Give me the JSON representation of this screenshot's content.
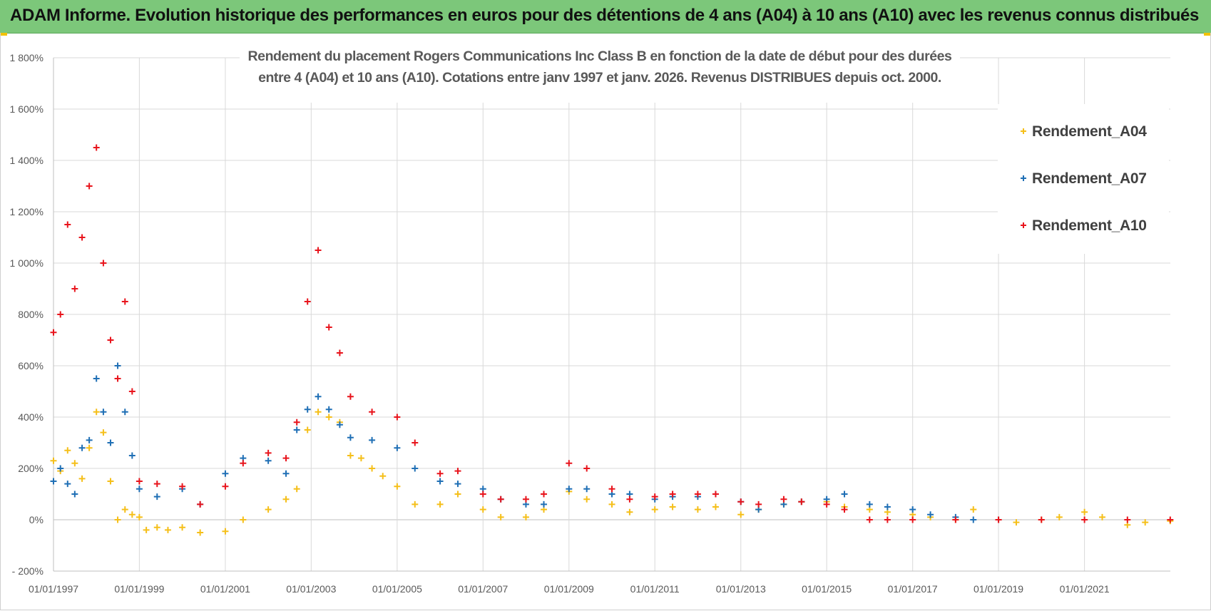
{
  "banner": {
    "title": "ADAM Informe. Evolution historique des performances en euros pour des détentions de 4 ans (A04) à 10 ans (A10) avec les revenus connus distribués"
  },
  "colors": {
    "banner_bg": "#7cc77a",
    "A04": "#f5bf19",
    "A07": "#1f6fb5",
    "A10": "#e8141c",
    "grid": "#d9d9d9"
  },
  "chart_data": {
    "type": "scatter",
    "marker": "plus",
    "title_lines": [
      "Rendement du placement Rogers Communications Inc Class B en fonction de la date de début pour des durées",
      "entre 4 (A04) et 10 ans (A10).  Cotations entre janv 1997 et janv. 2026. Revenus DISTRIBUES depuis oct. 2000."
    ],
    "x_axis": {
      "type": "date",
      "range": [
        "1997-01-01",
        "2023-01-01"
      ],
      "tick_labels": [
        "01/01/1997",
        "01/01/1999",
        "01/01/2001",
        "01/01/2003",
        "01/01/2005",
        "01/01/2007",
        "01/01/2009",
        "01/01/2011",
        "01/01/2013",
        "01/01/2015",
        "01/01/2017",
        "01/01/2019",
        "01/01/2021"
      ]
    },
    "y_axis": {
      "min": -200,
      "max": 1800,
      "step": 200,
      "unit": "%",
      "tick_labels": [
        "- 200%",
        "0%",
        "200%",
        "400%",
        "600%",
        "800%",
        "1 000%",
        "1 200%",
        "1 400%",
        "1 600%",
        "1 800%"
      ]
    },
    "grid": "on",
    "legend_position": "top-right",
    "series": [
      {
        "name": "Rendement_A04",
        "color": "#f5bf19",
        "x": [
          "1997-01-01",
          "1997-03-01",
          "1997-05-01",
          "1997-07-01",
          "1997-09-01",
          "1997-11-01",
          "1998-01-01",
          "1998-03-01",
          "1998-05-01",
          "1998-07-01",
          "1998-09-01",
          "1998-11-01",
          "1999-01-01",
          "1999-03-01",
          "1999-06-01",
          "1999-09-01",
          "2000-01-01",
          "2000-06-01",
          "2001-01-01",
          "2001-06-01",
          "2002-01-01",
          "2002-06-01",
          "2002-09-01",
          "2002-12-01",
          "2003-03-01",
          "2003-06-01",
          "2003-09-01",
          "2003-12-01",
          "2004-03-01",
          "2004-06-01",
          "2004-09-01",
          "2005-01-01",
          "2005-06-01",
          "2006-01-01",
          "2006-06-01",
          "2007-01-01",
          "2007-06-01",
          "2008-01-01",
          "2008-06-01",
          "2009-01-01",
          "2009-06-01",
          "2010-01-01",
          "2010-06-01",
          "2011-01-01",
          "2011-06-01",
          "2012-01-01",
          "2012-06-01",
          "2013-01-01",
          "2013-06-01",
          "2014-01-01",
          "2014-06-01",
          "2015-01-01",
          "2015-06-01",
          "2016-01-01",
          "2016-06-01",
          "2017-01-01",
          "2017-06-01",
          "2018-01-01",
          "2018-06-01",
          "2019-01-01",
          "2019-06-01",
          "2020-01-01",
          "2020-06-01",
          "2021-01-01",
          "2021-06-01",
          "2022-01-01",
          "2022-06-01",
          "2022-12-31"
        ],
        "y": [
          230,
          190,
          270,
          220,
          160,
          280,
          420,
          340,
          150,
          0,
          40,
          20,
          10,
          -40,
          -30,
          -40,
          -30,
          -50,
          -45,
          0,
          40,
          80,
          120,
          350,
          420,
          400,
          380,
          250,
          240,
          200,
          170,
          130,
          60,
          60,
          100,
          40,
          10,
          10,
          40,
          110,
          80,
          60,
          30,
          40,
          50,
          40,
          50,
          20,
          40,
          60,
          70,
          70,
          50,
          40,
          30,
          20,
          10,
          0,
          40,
          0,
          -10,
          0,
          10,
          30,
          10,
          -20,
          -10,
          -5
        ]
      },
      {
        "name": "Rendement_A07",
        "color": "#1f6fb5",
        "x": [
          "1997-01-01",
          "1997-03-01",
          "1997-05-01",
          "1997-07-01",
          "1997-09-01",
          "1997-11-01",
          "1998-01-01",
          "1998-03-01",
          "1998-05-01",
          "1998-07-01",
          "1998-09-01",
          "1998-11-01",
          "1999-01-01",
          "1999-06-01",
          "2000-01-01",
          "2000-06-01",
          "2001-01-01",
          "2001-06-01",
          "2002-01-01",
          "2002-06-01",
          "2002-09-01",
          "2002-12-01",
          "2003-03-01",
          "2003-06-01",
          "2003-09-01",
          "2003-12-01",
          "2004-06-01",
          "2005-01-01",
          "2005-06-01",
          "2006-01-01",
          "2006-06-01",
          "2007-01-01",
          "2007-06-01",
          "2008-01-01",
          "2008-06-01",
          "2009-01-01",
          "2009-06-01",
          "2010-01-01",
          "2010-06-01",
          "2011-01-01",
          "2011-06-01",
          "2012-01-01",
          "2012-06-01",
          "2013-01-01",
          "2013-06-01",
          "2014-01-01",
          "2014-06-01",
          "2015-01-01",
          "2015-06-01",
          "2016-01-01",
          "2016-06-01",
          "2017-01-01",
          "2017-06-01",
          "2018-01-01",
          "2018-06-01",
          "2019-01-01"
        ],
        "y": [
          150,
          200,
          140,
          100,
          280,
          310,
          550,
          420,
          300,
          600,
          420,
          250,
          120,
          90,
          120,
          60,
          180,
          240,
          230,
          180,
          350,
          430,
          480,
          430,
          370,
          320,
          310,
          280,
          200,
          150,
          140,
          120,
          80,
          60,
          60,
          120,
          120,
          100,
          100,
          80,
          90,
          90,
          100,
          70,
          40,
          60,
          70,
          80,
          100,
          60,
          50,
          40,
          20,
          10,
          0,
          0
        ]
      },
      {
        "name": "Rendement_A10",
        "color": "#e8141c",
        "x": [
          "1997-01-01",
          "1997-03-01",
          "1997-05-01",
          "1997-07-01",
          "1997-09-01",
          "1997-11-01",
          "1998-01-01",
          "1998-03-01",
          "1998-05-01",
          "1998-07-01",
          "1998-09-01",
          "1998-11-01",
          "1999-01-01",
          "1999-06-01",
          "2000-01-01",
          "2000-06-01",
          "2001-01-01",
          "2001-06-01",
          "2002-01-01",
          "2002-06-01",
          "2002-09-01",
          "2002-12-01",
          "2003-03-01",
          "2003-06-01",
          "2003-09-01",
          "2003-12-01",
          "2004-06-01",
          "2005-01-01",
          "2005-06-01",
          "2006-01-01",
          "2006-06-01",
          "2007-01-01",
          "2007-06-01",
          "2008-01-01",
          "2008-06-01",
          "2009-01-01",
          "2009-06-01",
          "2010-01-01",
          "2010-06-01",
          "2011-01-01",
          "2011-06-01",
          "2012-01-01",
          "2012-06-01",
          "2013-01-01",
          "2013-06-01",
          "2014-01-01",
          "2014-06-01",
          "2015-01-01",
          "2015-06-01",
          "2016-01-01",
          "2016-06-01",
          "2017-01-01",
          "2018-01-01",
          "2019-01-01",
          "2020-01-01",
          "2021-01-01",
          "2022-01-01",
          "2022-12-31"
        ],
        "y": [
          730,
          800,
          1150,
          900,
          1100,
          1300,
          1450,
          1000,
          700,
          550,
          850,
          500,
          150,
          140,
          130,
          60,
          130,
          220,
          260,
          240,
          380,
          850,
          1050,
          750,
          650,
          480,
          420,
          400,
          300,
          180,
          190,
          100,
          80,
          80,
          100,
          220,
          200,
          120,
          80,
          90,
          100,
          100,
          100,
          70,
          60,
          80,
          70,
          60,
          40,
          0,
          0,
          0,
          0,
          0,
          0,
          0,
          0,
          0
        ]
      }
    ]
  }
}
